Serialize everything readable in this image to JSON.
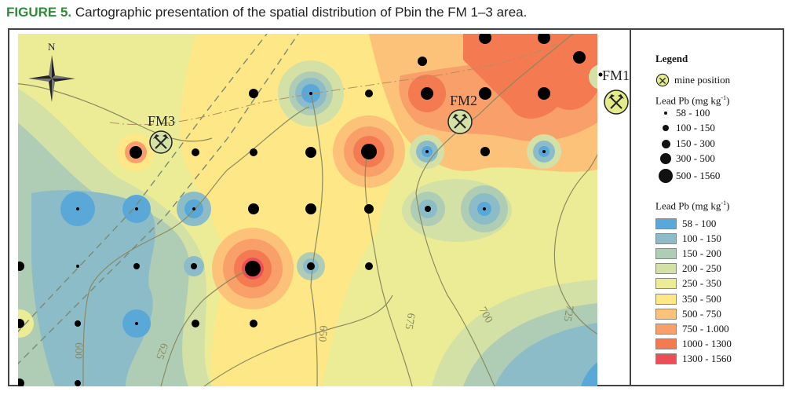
{
  "caption": {
    "label": "FIGURE 5.",
    "text": " Cartographic presentation of the spatial distribution of Pbin the FM 1–3 area."
  },
  "map": {
    "north_label": "N",
    "mines": [
      {
        "name": "FM1",
        "label": "FM1"
      },
      {
        "name": "FM2",
        "label": "FM2"
      },
      {
        "name": "FM3",
        "label": "FM3"
      }
    ],
    "contour_labels": [
      "600",
      "625",
      "650",
      "675",
      "700",
      "725"
    ],
    "samples": [
      {
        "col": 0,
        "row": 0,
        "class": 4
      },
      {
        "col": 1,
        "row": 0,
        "class": 4
      },
      {
        "col": 2,
        "row": 1,
        "class": 3
      },
      {
        "col": 3,
        "row": 2,
        "class": 1
      },
      {
        "col": 4,
        "row": 2,
        "class": 2
      },
      {
        "col": 5,
        "row": 2,
        "class": 2
      },
      {
        "col": 6,
        "row": 2,
        "class": 4
      },
      {
        "col": 7,
        "row": 2,
        "class": 3
      },
      {
        "col": 8,
        "row": 2,
        "class": 4
      },
      {
        "col": 9,
        "row": 2,
        "class": 4
      },
      {
        "col": 10,
        "row": 2,
        "class": 5
      },
      {
        "col": 11,
        "row": 3,
        "class": 5
      },
      {
        "col": 12,
        "row": 3,
        "class": 2
      },
      {
        "col": 13,
        "row": 3,
        "class": 3
      },
      {
        "col": 14,
        "row": 3,
        "class": 4
      },
      {
        "col": 15,
        "row": 3,
        "class": 5
      },
      {
        "col": 16,
        "row": 3,
        "class": 1
      },
      {
        "col": 17,
        "row": 3,
        "class": 1
      }
    ]
  },
  "legend": {
    "title": "Legend",
    "mine_label": "mine position",
    "points_heading": "Lead Pb (mg kg",
    "points_heading_sup": "-1",
    "points_heading_end": ")",
    "point_classes": [
      {
        "label": "58 - 100",
        "size": 1
      },
      {
        "label": "100 - 150",
        "size": 2
      },
      {
        "label": "150 - 300",
        "size": 3
      },
      {
        "label": "300 - 500",
        "size": 4
      },
      {
        "label": "500 - 1560",
        "size": 5
      }
    ],
    "fill_heading": "Lead Pb (mg kg",
    "fill_heading_sup": "-1",
    "fill_heading_end": ")",
    "fill_classes": [
      {
        "label": "58 - 100",
        "color": "#5aa8d8"
      },
      {
        "label": "100 - 150",
        "color": "#8dbcc9"
      },
      {
        "label": "150 - 200",
        "color": "#afcdb4"
      },
      {
        "label": "200 - 250",
        "color": "#d3e0a6"
      },
      {
        "label": "250 - 350",
        "color": "#ecec96"
      },
      {
        "label": "350 - 500",
        "color": "#fde786"
      },
      {
        "label": "500 - 750",
        "color": "#fcc27a"
      },
      {
        "label": "750 - 1.000",
        "color": "#f9a06a"
      },
      {
        "label": "1000 - 1300",
        "color": "#f47a52"
      },
      {
        "label": "1300 - 1560",
        "color": "#ea4f55"
      }
    ]
  }
}
